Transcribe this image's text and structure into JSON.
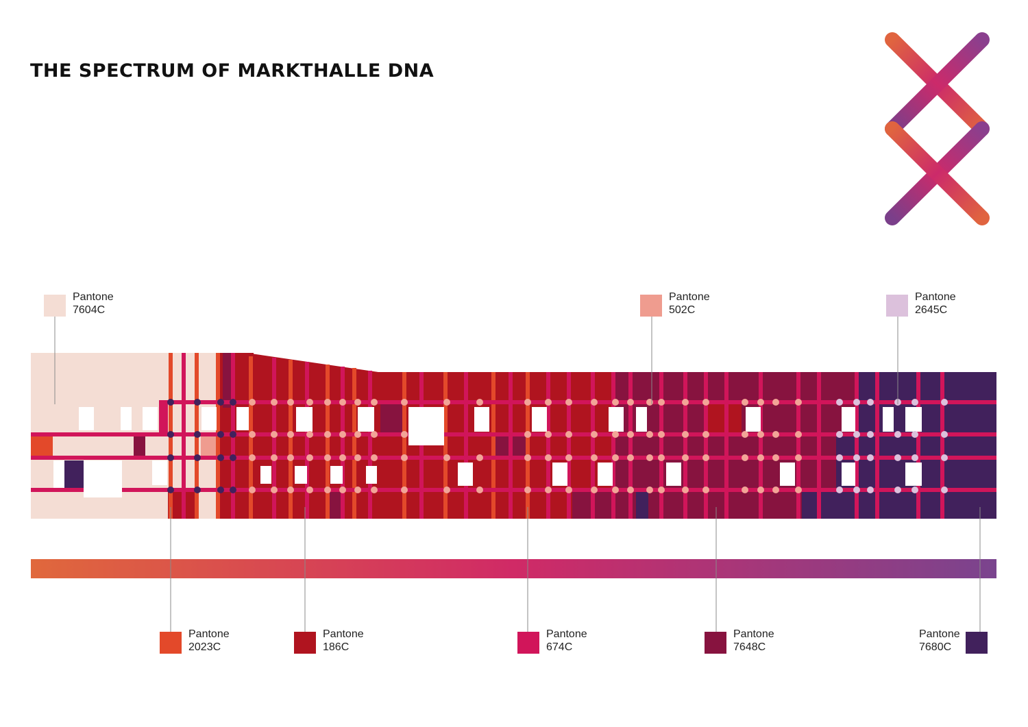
{
  "title": "THE SPECTRUM OF MARKTHALLE DNA",
  "logo": {
    "name": "markthalle-rune-logo",
    "color_start": "#e0643f",
    "color_mid": "#cc2a6a",
    "color_end": "#7a3f8a"
  },
  "legend_top": [
    {
      "line1": "Pantone",
      "line2": "7604C",
      "color": "#f4ddd4"
    },
    {
      "line1": "Pantone",
      "line2": "502C",
      "color": "#ef9c8f"
    },
    {
      "line1": "Pantone",
      "line2": "2645C",
      "color": "#dcc1dc"
    }
  ],
  "legend_bottom": [
    {
      "line1": "Pantone",
      "line2": "2023C",
      "color": "#e3492a"
    },
    {
      "line1": "Pantone",
      "line2": "186C",
      "color": "#b0141f"
    },
    {
      "line1": "Pantone",
      "line2": "674C",
      "color": "#d1155a"
    },
    {
      "line1": "Pantone",
      "line2": "7648C",
      "color": "#87133f"
    },
    {
      "line1": "Pantone",
      "line2": "7680C",
      "color": "#41215c"
    }
  ],
  "gradient_bar": {
    "color_start": "#e0683c",
    "color_mid": "#d02a66",
    "color_end": "#7a448e"
  }
}
